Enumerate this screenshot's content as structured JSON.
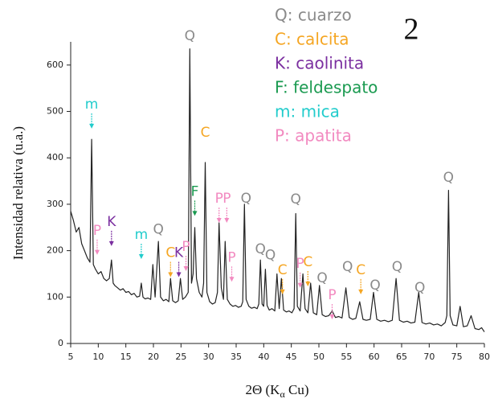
{
  "chart_data": {
    "type": "line",
    "panel_label": "2",
    "x_label": [
      "2Θ (K",
      "α",
      " Cu)"
    ],
    "y_label": "Intensidad relativa (u.a.)",
    "color": "#222222",
    "xlim": [
      5,
      80
    ],
    "ylim": [
      0,
      650
    ],
    "xticks": [
      5,
      10,
      15,
      20,
      25,
      30,
      35,
      40,
      45,
      50,
      55,
      60,
      65,
      70,
      75,
      80
    ],
    "yticks": [
      0,
      100,
      200,
      300,
      400,
      500,
      600
    ],
    "legend_position": "upper right",
    "legend": [
      {
        "text": "Q: cuarzo",
        "color": "#8a8a8a"
      },
      {
        "text": "C: calcita",
        "color": "#f5a623"
      },
      {
        "text": "K: caolinita",
        "color": "#7b2fa0"
      },
      {
        "text": "F: feldespato",
        "color": "#1a9a50"
      },
      {
        "text": "m: mica",
        "color": "#22cccc"
      },
      {
        "text": "P: apatita",
        "color": "#f28ac0"
      }
    ],
    "x": [
      5,
      5.5,
      6,
      6.5,
      7,
      7.5,
      8,
      8.5,
      8.8,
      9.1,
      9.5,
      10,
      10.5,
      11,
      11.5,
      12,
      12.4,
      12.7,
      13,
      13.5,
      14,
      14.5,
      15,
      15.5,
      16,
      16.5,
      17,
      17.5,
      17.8,
      18.1,
      18.5,
      19,
      19.5,
      19.9,
      20.3,
      20.9,
      21.3,
      21.8,
      22.3,
      22.8,
      23.1,
      23.5,
      24,
      24.5,
      24.9,
      25.3,
      25.8,
      26.3,
      26.6,
      26.9,
      27.2,
      27.5,
      27.8,
      28.3,
      28.8,
      29.1,
      29.4,
      29.7,
      30.2,
      30.7,
      31.2,
      31.6,
      31.9,
      32.3,
      32.7,
      33,
      33.4,
      33.9,
      34.4,
      34.9,
      35.4,
      35.9,
      36.2,
      36.5,
      36.8,
      37.3,
      37.8,
      38.3,
      38.8,
      39.1,
      39.4,
      39.7,
      40,
      40.3,
      40.6,
      41,
      41.5,
      42,
      42.4,
      42.8,
      43.2,
      43.6,
      44.1,
      44.6,
      45.1,
      45.5,
      45.8,
      46.1,
      46.6,
      47.1,
      47.5,
      48,
      48.5,
      49,
      49.6,
      50.1,
      50.6,
      51.2,
      51.8,
      52.4,
      53,
      53.6,
      54.2,
      54.9,
      55.5,
      56.1,
      56.7,
      57.4,
      58,
      58.6,
      59.3,
      59.9,
      60.5,
      61.2,
      61.9,
      62.6,
      63.3,
      64,
      64.6,
      65.3,
      66,
      66.7,
      67.4,
      68.1,
      68.7,
      69.4,
      70.1,
      70.8,
      71.5,
      72.2,
      72.9,
      73.2,
      73.5,
      73.8,
      74.3,
      75,
      75.6,
      76.2,
      76.9,
      77.6,
      78.3,
      79,
      79.5,
      80
    ],
    "values": [
      285,
      265,
      240,
      250,
      215,
      200,
      185,
      175,
      440,
      170,
      160,
      150,
      155,
      140,
      135,
      140,
      180,
      130,
      125,
      120,
      115,
      118,
      110,
      112,
      105,
      108,
      100,
      102,
      130,
      100,
      96,
      98,
      95,
      170,
      100,
      220,
      100,
      92,
      95,
      90,
      140,
      92,
      88,
      92,
      140,
      95,
      100,
      110,
      635,
      130,
      150,
      250,
      140,
      110,
      100,
      130,
      390,
      110,
      90,
      85,
      88,
      110,
      260,
      120,
      95,
      220,
      95,
      85,
      80,
      82,
      78,
      80,
      90,
      300,
      95,
      80,
      76,
      78,
      75,
      85,
      180,
      85,
      80,
      160,
      82,
      72,
      75,
      70,
      150,
      75,
      140,
      72,
      68,
      70,
      66,
      75,
      280,
      80,
      70,
      150,
      75,
      66,
      130,
      66,
      62,
      125,
      62,
      58,
      60,
      70,
      56,
      58,
      55,
      120,
      56,
      52,
      54,
      90,
      52,
      50,
      52,
      110,
      52,
      48,
      50,
      47,
      50,
      140,
      50,
      46,
      48,
      44,
      46,
      110,
      45,
      42,
      44,
      40,
      42,
      38,
      45,
      60,
      330,
      60,
      40,
      38,
      80,
      36,
      38,
      60,
      32,
      30,
      34,
      25
    ],
    "annotations": [
      {
        "text": "Q",
        "x": 26.6,
        "y": 662,
        "color": "#8a8a8a",
        "arrow": false
      },
      {
        "text": "m",
        "x": 8.8,
        "y": 515,
        "color": "#22cccc",
        "arrow": true
      },
      {
        "text": "P",
        "x": 9.8,
        "y": 243,
        "color": "#f28ac0",
        "arrow": true
      },
      {
        "text": "K",
        "x": 12.4,
        "y": 262,
        "color": "#7b2fa0",
        "arrow": true
      },
      {
        "text": "m",
        "x": 17.8,
        "y": 234,
        "color": "#22cccc",
        "arrow": true
      },
      {
        "text": "Q",
        "x": 20.9,
        "y": 245,
        "color": "#8a8a8a",
        "arrow": false
      },
      {
        "text": "C",
        "x": 23.1,
        "y": 195,
        "color": "#f5a623",
        "arrow": true
      },
      {
        "text": "K",
        "x": 24.6,
        "y": 195,
        "color": "#7b2fa0",
        "arrow": true
      },
      {
        "text": "P",
        "x": 25.9,
        "y": 208,
        "color": "#f28ac0",
        "arrow": true
      },
      {
        "text": "F",
        "x": 27.5,
        "y": 327,
        "color": "#1a9a50",
        "arrow": true
      },
      {
        "text": "C",
        "x": 29.4,
        "y": 454,
        "color": "#f5a623",
        "arrow": false
      },
      {
        "text": "P",
        "x": 31.9,
        "y": 312,
        "color": "#f28ac0",
        "arrow": true
      },
      {
        "text": "P",
        "x": 33.3,
        "y": 312,
        "color": "#f28ac0",
        "arrow": true
      },
      {
        "text": "Q",
        "x": 36.8,
        "y": 312,
        "color": "#8a8a8a",
        "arrow": false
      },
      {
        "text": "P",
        "x": 34.2,
        "y": 185,
        "color": "#f28ac0",
        "arrow": true
      },
      {
        "text": "Q",
        "x": 39.4,
        "y": 203,
        "color": "#8a8a8a",
        "arrow": false
      },
      {
        "text": "Q",
        "x": 41.2,
        "y": 190,
        "color": "#8a8a8a",
        "arrow": false
      },
      {
        "text": "C",
        "x": 43.4,
        "y": 158,
        "color": "#f5a623",
        "arrow": true
      },
      {
        "text": "Q",
        "x": 45.8,
        "y": 310,
        "color": "#8a8a8a",
        "arrow": false
      },
      {
        "text": "P",
        "x": 46.6,
        "y": 172,
        "color": "#f28ac0",
        "arrow": true
      },
      {
        "text": "C",
        "x": 48,
        "y": 175,
        "color": "#f5a623",
        "arrow": true
      },
      {
        "text": "Q",
        "x": 50.6,
        "y": 140,
        "color": "#8a8a8a",
        "arrow": false
      },
      {
        "text": "P",
        "x": 52.4,
        "y": 104,
        "color": "#f28ac0",
        "arrow": true
      },
      {
        "text": "Q",
        "x": 55.2,
        "y": 165,
        "color": "#8a8a8a",
        "arrow": false
      },
      {
        "text": "C",
        "x": 57.6,
        "y": 158,
        "color": "#f5a623",
        "arrow": true
      },
      {
        "text": "Q",
        "x": 60.2,
        "y": 125,
        "color": "#8a8a8a",
        "arrow": false
      },
      {
        "text": "Q",
        "x": 64.2,
        "y": 165,
        "color": "#8a8a8a",
        "arrow": false
      },
      {
        "text": "Q",
        "x": 68.3,
        "y": 120,
        "color": "#8a8a8a",
        "arrow": false
      },
      {
        "text": "Q",
        "x": 73.5,
        "y": 357,
        "color": "#8a8a8a",
        "arrow": false
      }
    ]
  }
}
